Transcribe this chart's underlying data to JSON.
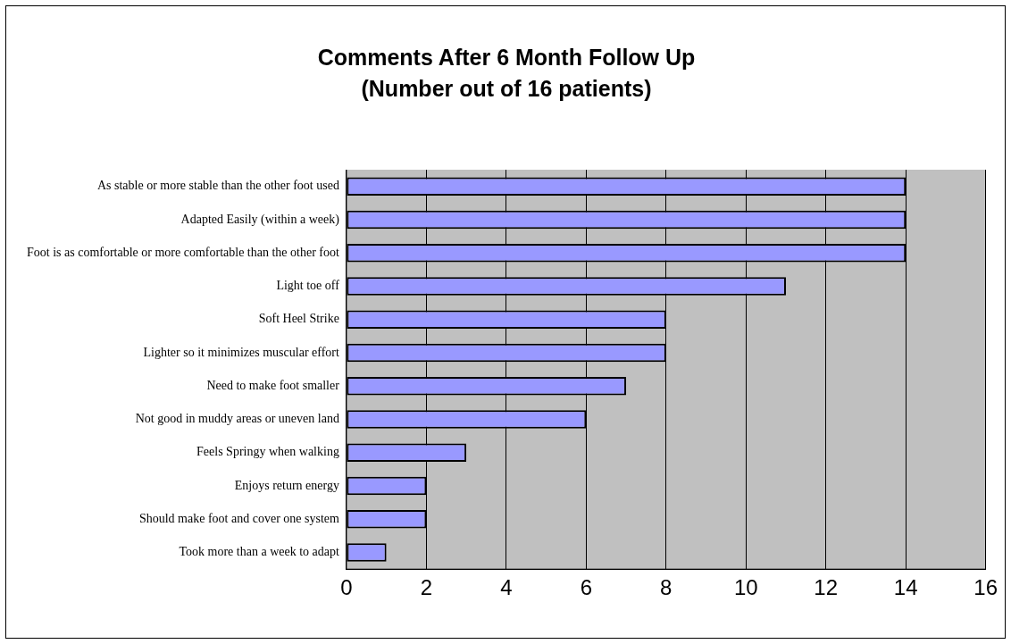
{
  "chart_data": {
    "type": "bar",
    "orientation": "horizontal",
    "title": "Comments After 6 Month Follow Up\n(Number out of 16 patients)",
    "categories": [
      "As stable or more stable than the other foot used",
      "Adapted Easily (within a week)",
      "Foot is as comfortable or more comfortable than the other foot",
      "Light toe off",
      "Soft Heel Strike",
      "Lighter so it minimizes muscular effort",
      "Need to make foot smaller",
      "Not good in muddy areas or uneven land",
      "Feels Springy when walking",
      "Enjoys return energy",
      "Should make foot and cover one system",
      "Took more than a week to adapt"
    ],
    "values": [
      14,
      14,
      14,
      11,
      8,
      8,
      7,
      6,
      3,
      2,
      2,
      1
    ],
    "color": "#9999ff",
    "xlim": [
      0,
      16
    ],
    "xticks": [
      0,
      2,
      4,
      6,
      8,
      10,
      12,
      14,
      16
    ],
    "grid": "x",
    "legend": false
  }
}
